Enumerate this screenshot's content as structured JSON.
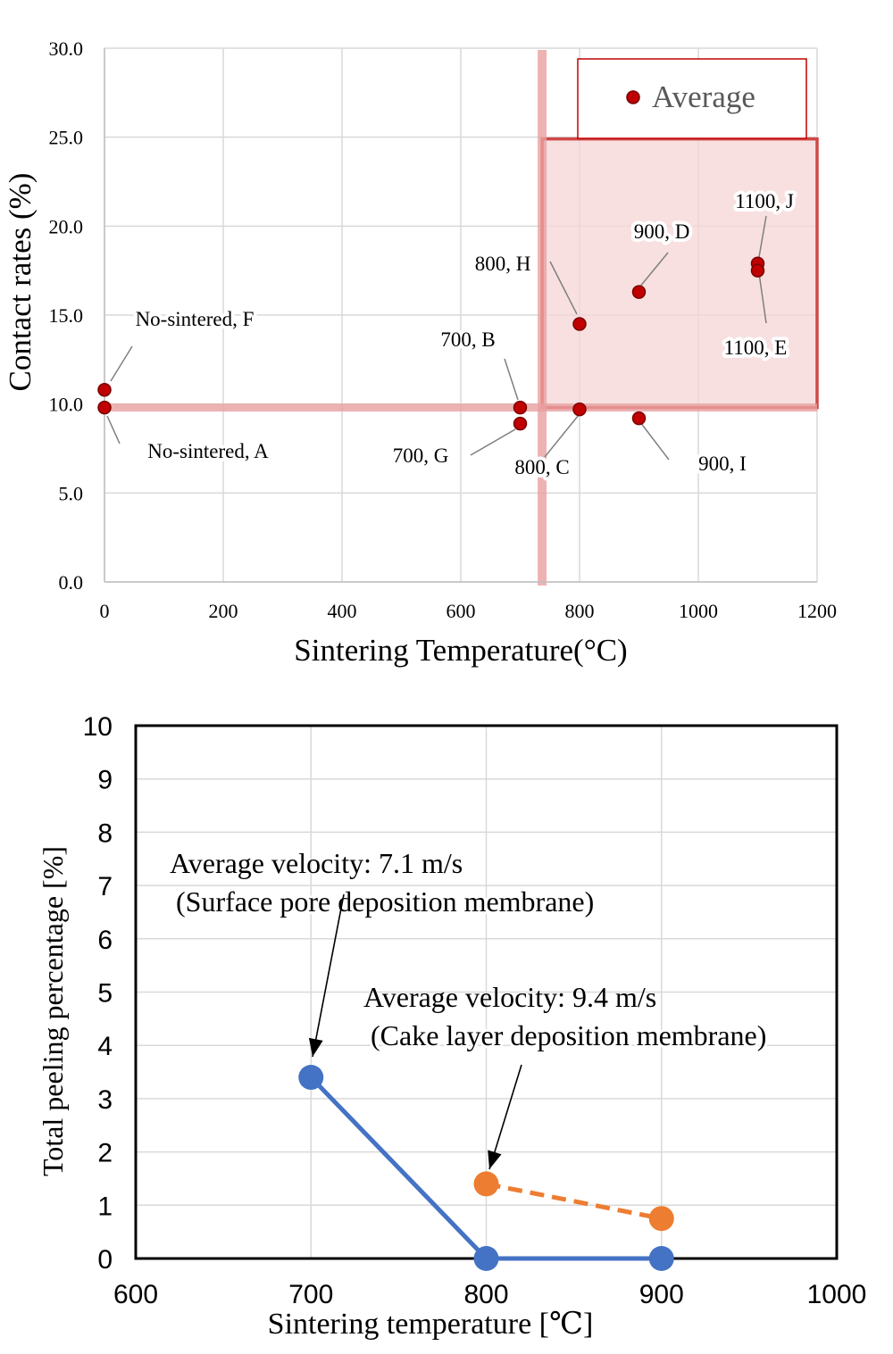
{
  "colors": {
    "point": "#c00000",
    "highlight_band": "#e8a0a0",
    "highlight_fill": "#f5d5d5",
    "highlight_border": "#d04848",
    "series_blue": "#4472c4",
    "series_orange": "#ed7d31",
    "grid": "#d9d9d9"
  },
  "chart_data": [
    {
      "type": "scatter",
      "xlabel": "Sintering Temperature(°C)",
      "ylabel": "Contact rates (%)",
      "xlim": [
        0,
        1200
      ],
      "ylim": [
        0,
        30
      ],
      "xticks": [
        "0",
        "200",
        "400",
        "600",
        "800",
        "1000",
        "1200"
      ],
      "yticks": [
        "0.0",
        "5.0",
        "10.0",
        "15.0",
        "20.0",
        "25.0",
        "30.0"
      ],
      "grid": true,
      "legend": {
        "position": "top-right",
        "entries": [
          "Average"
        ]
      },
      "series": [
        {
          "name": "Average",
          "points": [
            {
              "x": 0,
              "y": 10.8,
              "label": "No-sintered, F"
            },
            {
              "x": 0,
              "y": 9.8,
              "label": "No-sintered, A"
            },
            {
              "x": 700,
              "y": 9.8,
              "label": "700, B"
            },
            {
              "x": 700,
              "y": 8.9,
              "label": "700, G"
            },
            {
              "x": 800,
              "y": 14.5,
              "label": "800, H"
            },
            {
              "x": 800,
              "y": 9.7,
              "label": "800, C"
            },
            {
              "x": 900,
              "y": 16.3,
              "label": "900, D"
            },
            {
              "x": 900,
              "y": 9.2,
              "label": "900, I"
            },
            {
              "x": 1100,
              "y": 17.9,
              "label": "1100, J"
            },
            {
              "x": 1100,
              "y": 17.5,
              "label": "1100, E"
            }
          ]
        }
      ],
      "highlights": {
        "horizontal_band_y": 9.8,
        "vertical_band_x": 737,
        "region": {
          "x": [
            737,
            1200
          ],
          "y": [
            9.8,
            24.9
          ]
        }
      }
    },
    {
      "type": "line",
      "xlabel": "Sintering temperature [℃]",
      "ylabel": "Total peeling percentage [%]",
      "xlim": [
        600,
        1000
      ],
      "ylim": [
        0,
        10
      ],
      "xticks": [
        "600",
        "700",
        "800",
        "900",
        "1000"
      ],
      "yticks": [
        "0",
        "1",
        "2",
        "3",
        "4",
        "5",
        "6",
        "7",
        "8",
        "9",
        "10"
      ],
      "grid": true,
      "series": [
        {
          "color": "#4472c4",
          "style": "solid",
          "x": [
            700,
            800,
            900
          ],
          "y": [
            3.4,
            0,
            0
          ]
        },
        {
          "color": "#ed7d31",
          "style": "dashed",
          "x": [
            800,
            900
          ],
          "y": [
            1.4,
            0.75
          ]
        }
      ],
      "annotations": [
        {
          "line1": "Average velocity: 7.1 m/s",
          "line2": "(Surface pore deposition membrane)",
          "target": {
            "x": 700,
            "y": 3.4
          }
        },
        {
          "line1": "Average velocity: 9.4 m/s",
          "line2": "(Cake layer deposition membrane)",
          "target": {
            "x": 800,
            "y": 1.4
          }
        }
      ]
    }
  ]
}
